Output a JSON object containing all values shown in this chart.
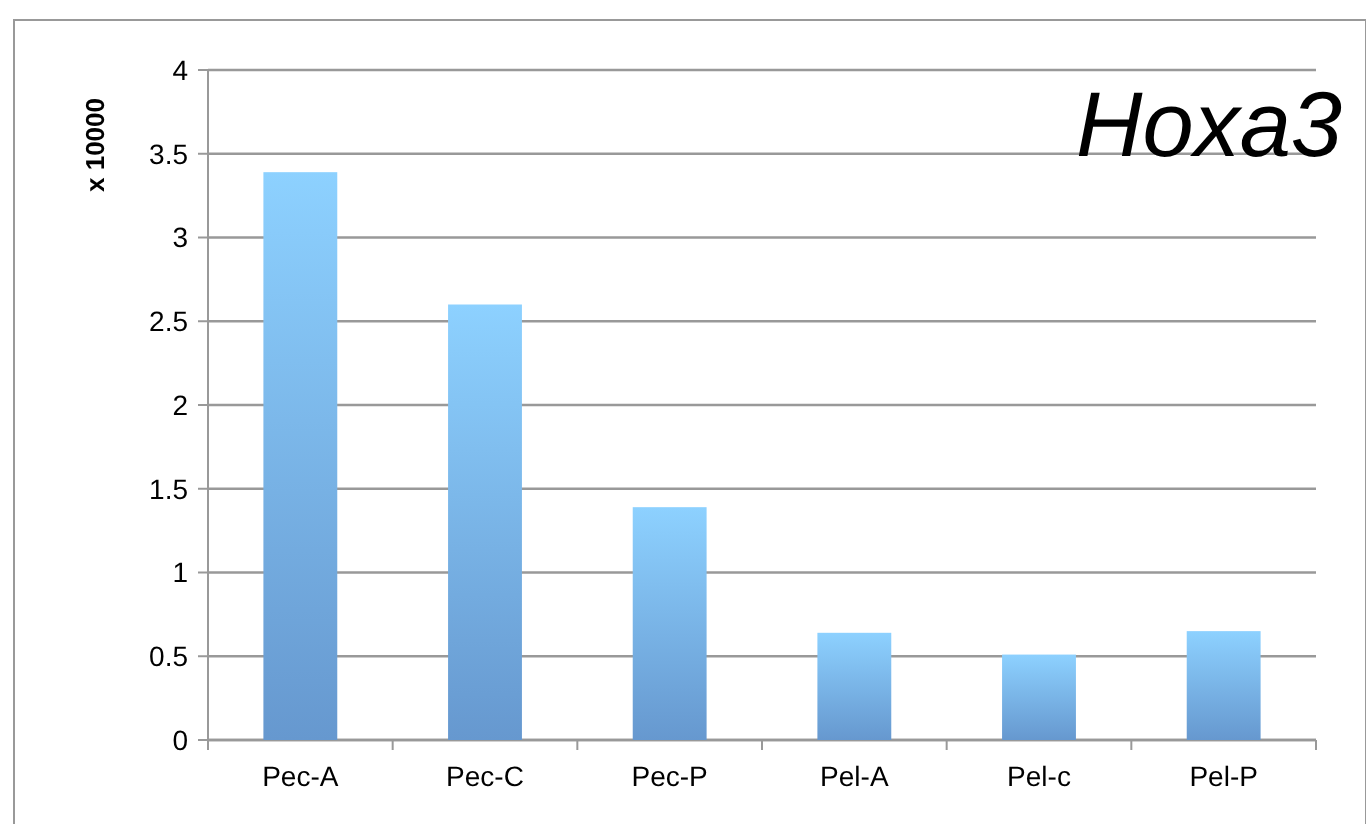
{
  "chart_data": {
    "type": "bar",
    "title": "Hoxa3",
    "ylabel": "x 10000",
    "categories": [
      "Pec-A",
      "Pec-C",
      "Pec-P",
      "Pel-A",
      "Pel-c",
      "Pel-P"
    ],
    "values": [
      3.39,
      2.6,
      1.39,
      0.64,
      0.51,
      0.65
    ],
    "color": "#72a9e6",
    "ylim": [
      0,
      4
    ],
    "yticks": [
      0,
      0.5,
      1,
      1.5,
      2,
      2.5,
      3,
      3.5,
      4
    ],
    "grid": "y"
  }
}
